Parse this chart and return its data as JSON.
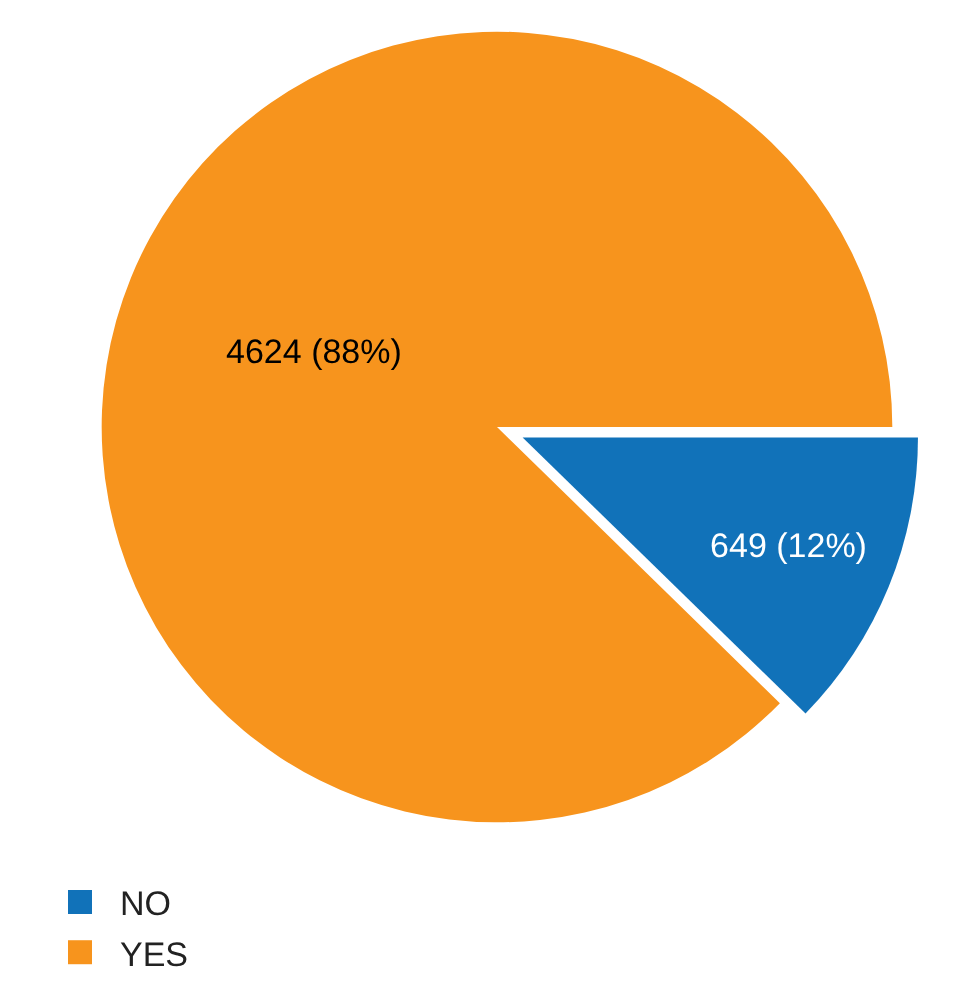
{
  "chart_data": {
    "type": "pie",
    "categories": [
      "NO",
      "YES"
    ],
    "values": [
      649,
      4624
    ],
    "colors": [
      "#1172b9",
      "#f7941d"
    ],
    "value_labels": [
      "649 (12%)",
      "4624 (88%)"
    ],
    "legend": "bottom"
  }
}
